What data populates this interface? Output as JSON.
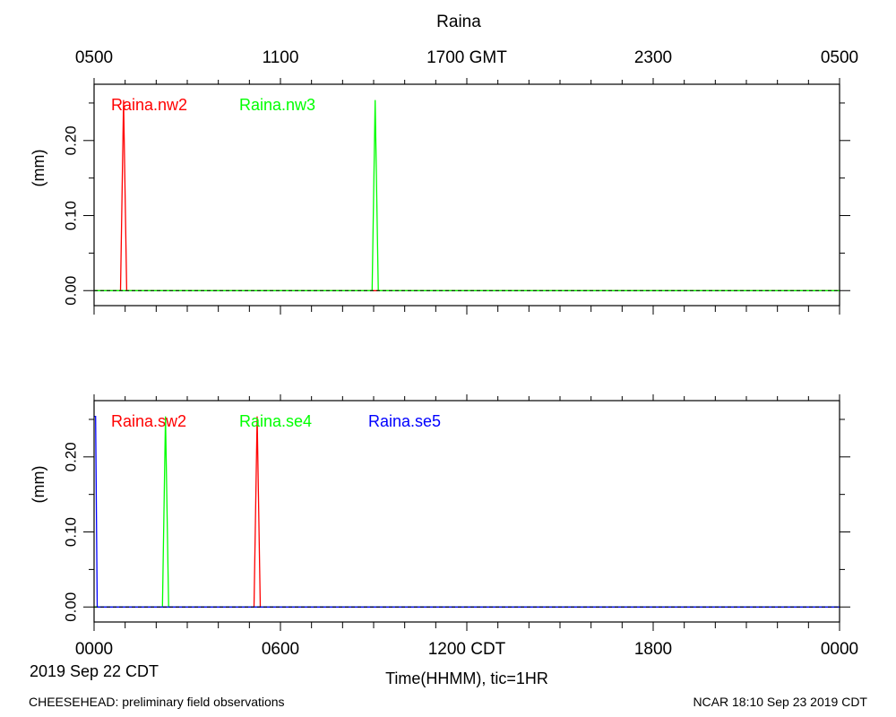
{
  "title": "Raina",
  "top_axis": {
    "ticks": [
      {
        "hour": 0,
        "label": "0500"
      },
      {
        "hour": 6,
        "label": "1100"
      },
      {
        "hour": 12,
        "label": "1700 GMT"
      },
      {
        "hour": 18,
        "label": "2300"
      },
      {
        "hour": 24,
        "label": "0500"
      }
    ]
  },
  "bottom_axis": {
    "ticks": [
      {
        "hour": 0,
        "label": "0000"
      },
      {
        "hour": 6,
        "label": "0600"
      },
      {
        "hour": 12,
        "label": "1200 CDT"
      },
      {
        "hour": 18,
        "label": "1800"
      },
      {
        "hour": 24,
        "label": "0000"
      }
    ],
    "date_label": "2019 Sep 22 CDT",
    "xlabel": "Time(HHMM), tic=1HR"
  },
  "footer": {
    "left": "CHEESEHEAD: preliminary field observations",
    "right": "NCAR 18:10 Sep 23 2019 CDT"
  },
  "chart_data": [
    {
      "type": "line",
      "ylabel": "(mm)",
      "xlim": [
        0,
        24
      ],
      "ylim": [
        -0.02,
        0.275
      ],
      "yticks": [
        0.0,
        0.1,
        0.2
      ],
      "ytick_labels": [
        "0.00",
        "0.10",
        "0.20"
      ],
      "zero_line": "dashed",
      "series": [
        {
          "name": "Raina.nw2",
          "color": "#ff0000",
          "x": [
            0,
            0.85,
            0.95,
            1.05,
            24
          ],
          "y": [
            0,
            0,
            0.254,
            0,
            0
          ]
        },
        {
          "name": "Raina.nw3",
          "color": "#00ff00",
          "x": [
            0,
            8.95,
            9.05,
            9.15,
            24
          ],
          "y": [
            0,
            0,
            0.254,
            0,
            0
          ]
        }
      ]
    },
    {
      "type": "line",
      "ylabel": "(mm)",
      "xlim": [
        0,
        24
      ],
      "ylim": [
        -0.02,
        0.275
      ],
      "yticks": [
        0.0,
        0.1,
        0.2
      ],
      "ytick_labels": [
        "0.00",
        "0.10",
        "0.20"
      ],
      "zero_line": "dashed",
      "series": [
        {
          "name": "Raina.sw2",
          "color": "#ff0000",
          "x": [
            0,
            5.15,
            5.25,
            5.35,
            24
          ],
          "y": [
            0,
            0,
            0.254,
            0,
            0
          ]
        },
        {
          "name": "Raina.se4",
          "color": "#00ff00",
          "x": [
            0,
            2.2,
            2.3,
            2.4,
            24
          ],
          "y": [
            0,
            0,
            0.254,
            0,
            0
          ]
        },
        {
          "name": "Raina.se5",
          "color": "#0000ff",
          "x": [
            0,
            0.05,
            0.1,
            24
          ],
          "y": [
            0.254,
            0.254,
            0,
            0
          ]
        }
      ]
    }
  ]
}
